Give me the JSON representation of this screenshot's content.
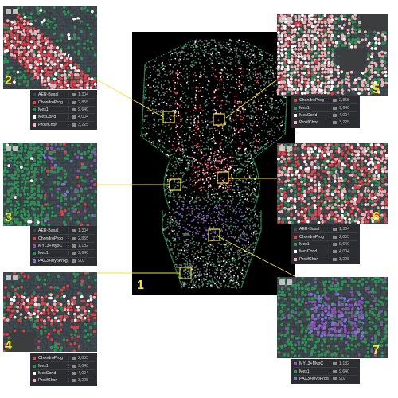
{
  "colors": {
    "background": "#3b3d3f",
    "AER-Basal": "#3e4a52",
    "ChondroProg": "#d9434e",
    "Mes1": "#2f8f5a",
    "MesCond": "#ffffff",
    "ProlifChon": "#f1b2b8",
    "MYL3+MyoC": "#8b4fb8",
    "PAX3+MyoProg": "#7a79d0",
    "highlight": "#f2e33a"
  },
  "center": {
    "label": "1"
  },
  "panels": [
    {
      "id": "2",
      "label": "2",
      "legend": [
        {
          "name": "AER-Basal",
          "count": "1,304",
          "color_key": "AER-Basal"
        },
        {
          "name": "ChondroProg",
          "count": "2,855",
          "color_key": "ChondroProg"
        },
        {
          "name": "Mes1",
          "count": "9,640",
          "color_key": "Mes1"
        },
        {
          "name": "MesCond",
          "count": "4,004",
          "color_key": "MesCond"
        },
        {
          "name": "ProlifChon",
          "count": "3,225",
          "color_key": "ProlifChon"
        }
      ]
    },
    {
      "id": "3",
      "label": "3",
      "legend": [
        {
          "name": "AER-Basal",
          "count": "1,304",
          "color_key": "AER-Basal"
        },
        {
          "name": "ChondroProg",
          "count": "2,855",
          "color_key": "ChondroProg"
        },
        {
          "name": "MYL3+MyoC",
          "count": "1,182",
          "color_key": "MYL3+MyoC"
        },
        {
          "name": "Mes1",
          "count": "9,640",
          "color_key": "Mes1"
        },
        {
          "name": "PAX3+MyoProg",
          "count": "902",
          "color_key": "PAX3+MyoProg"
        }
      ]
    },
    {
      "id": "4",
      "label": "4",
      "legend": [
        {
          "name": "ChondroProg",
          "count": "2,855",
          "color_key": "ChondroProg"
        },
        {
          "name": "Mes1",
          "count": "9,640",
          "color_key": "Mes1"
        },
        {
          "name": "MesCond",
          "count": "4,004",
          "color_key": "MesCond"
        },
        {
          "name": "ProlifChon",
          "count": "3,225",
          "color_key": "ProlifChon"
        }
      ]
    },
    {
      "id": "5",
      "label": "5",
      "legend": [
        {
          "name": "ChondroProg",
          "count": "2,855",
          "color_key": "ChondroProg"
        },
        {
          "name": "Mes1",
          "count": "9,640",
          "color_key": "Mes1"
        },
        {
          "name": "MesCond",
          "count": "4,004",
          "color_key": "MesCond"
        },
        {
          "name": "ProlifChon",
          "count": "3,225",
          "color_key": "ProlifChon"
        }
      ]
    },
    {
      "id": "6",
      "label": "6",
      "legend": [
        {
          "name": "AER-Basal",
          "count": "1,304",
          "color_key": "AER-Basal"
        },
        {
          "name": "ChondroProg",
          "count": "2,855",
          "color_key": "ChondroProg"
        },
        {
          "name": "Mes1",
          "count": "9,640",
          "color_key": "Mes1"
        },
        {
          "name": "MesCond",
          "count": "4,004",
          "color_key": "MesCond"
        },
        {
          "name": "ProlifChon",
          "count": "3,225",
          "color_key": "ProlifChon"
        }
      ]
    },
    {
      "id": "7",
      "label": "7",
      "legend": [
        {
          "name": "MYL3+MyoC",
          "count": "1,182",
          "color_key": "MYL3+MyoC"
        },
        {
          "name": "Mes1",
          "count": "9,640",
          "color_key": "Mes1"
        },
        {
          "name": "PAX3+MyoProg",
          "count": "902",
          "color_key": "PAX3+MyoProg"
        }
      ]
    }
  ]
}
